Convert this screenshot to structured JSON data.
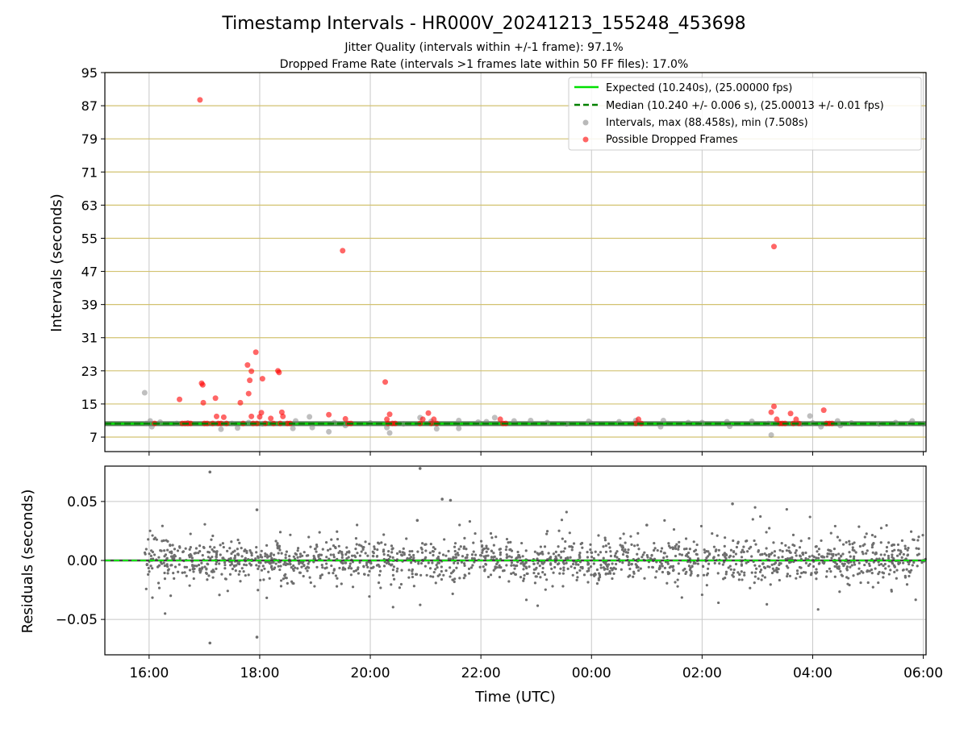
{
  "chart_data": [
    {
      "type": "scatter",
      "title": "Timestamp Intervals - HR000V_20241213_155248_453698",
      "subtitle_lines": [
        "Jitter Quality (intervals within +/-1 frame): 97.1%",
        "Dropped Frame Rate (intervals >1 frames late within 50 FF files): 17.0%"
      ],
      "xlabel": "",
      "ylabel": "Intervals (seconds)",
      "x_units": "hours since 00:00 UTC on first day",
      "xlim": [
        15.2,
        30.05
      ],
      "ylim": [
        3.5,
        95
      ],
      "yticks": [
        7,
        15,
        23,
        31,
        39,
        47,
        55,
        63,
        71,
        79,
        87,
        95
      ],
      "horizontal_gridlines": "yticks",
      "vertical_gridlines": "xticks",
      "legend_position": "top-right",
      "legend": [
        "Expected (10.240s), (25.00000 fps)",
        "Median (10.240 +/- 0.006 s), (25.00013 +/- 0.01 fps)",
        "Intervals, max (88.458s), min (7.508s)",
        "Possible Dropped Frames"
      ],
      "expected_interval": 10.24,
      "median_interval": 10.24,
      "series": [
        {
          "name": "Intervals, max (88.458s), min (7.508s)",
          "color": "#808080",
          "points": [
            [
              15.92,
              17.7
            ],
            [
              15.95,
              10.3
            ],
            [
              16.02,
              10.9
            ],
            [
              16.05,
              9.5
            ],
            [
              16.2,
              10.6
            ],
            [
              16.5,
              10.3
            ],
            [
              16.7,
              10.4
            ],
            [
              17.3,
              8.9
            ],
            [
              17.5,
              10.3
            ],
            [
              17.6,
              9.2
            ],
            [
              17.8,
              10.5
            ],
            [
              18.05,
              10.2
            ],
            [
              18.6,
              9.1
            ],
            [
              18.65,
              10.9
            ],
            [
              18.9,
              11.9
            ],
            [
              18.95,
              9.3
            ],
            [
              19.25,
              8.3
            ],
            [
              19.35,
              10.5
            ],
            [
              19.55,
              9.8
            ],
            [
              20.0,
              10.4
            ],
            [
              20.3,
              9.3
            ],
            [
              20.35,
              8.0
            ],
            [
              20.6,
              10.2
            ],
            [
              20.9,
              11.7
            ],
            [
              21.1,
              10.8
            ],
            [
              21.2,
              9.0
            ],
            [
              21.6,
              9.1
            ],
            [
              21.6,
              11.0
            ],
            [
              21.95,
              10.6
            ],
            [
              22.1,
              10.7
            ],
            [
              22.25,
              11.7
            ],
            [
              22.6,
              10.9
            ],
            [
              22.9,
              11.0
            ],
            [
              23.2,
              10.5
            ],
            [
              23.55,
              10.2
            ],
            [
              23.95,
              10.8
            ],
            [
              24.0,
              10.3
            ],
            [
              24.5,
              10.7
            ],
            [
              24.8,
              11.0
            ],
            [
              25.25,
              9.5
            ],
            [
              25.3,
              11.0
            ],
            [
              25.75,
              10.5
            ],
            [
              26.0,
              10.5
            ],
            [
              26.45,
              10.7
            ],
            [
              26.5,
              9.6
            ],
            [
              26.9,
              10.8
            ],
            [
              27.2,
              10.3
            ],
            [
              27.25,
              7.5
            ],
            [
              27.8,
              10.2
            ],
            [
              27.95,
              12.1
            ],
            [
              28.0,
              10.4
            ],
            [
              28.15,
              9.5
            ],
            [
              28.45,
              10.9
            ],
            [
              28.5,
              9.8
            ],
            [
              28.7,
              10.4
            ],
            [
              29.2,
              10.2
            ],
            [
              29.5,
              10.5
            ],
            [
              29.75,
              10.3
            ],
            [
              29.8,
              10.9
            ],
            [
              30.0,
              10.2
            ]
          ]
        },
        {
          "name": "Possible Dropped Frames",
          "color": "#ff0000",
          "points": [
            [
              16.1,
              10.3
            ],
            [
              16.55,
              16.1
            ],
            [
              16.6,
              10.3
            ],
            [
              16.65,
              10.3
            ],
            [
              16.7,
              10.3
            ],
            [
              16.75,
              10.3
            ],
            [
              16.92,
              88.4
            ],
            [
              16.95,
              20.0
            ],
            [
              16.97,
              19.6
            ],
            [
              16.98,
              15.3
            ],
            [
              17.0,
              10.3
            ],
            [
              17.05,
              10.3
            ],
            [
              17.15,
              10.3
            ],
            [
              17.2,
              16.4
            ],
            [
              17.22,
              12.0
            ],
            [
              17.25,
              10.3
            ],
            [
              17.3,
              10.3
            ],
            [
              17.35,
              11.8
            ],
            [
              17.4,
              10.3
            ],
            [
              17.65,
              15.3
            ],
            [
              17.7,
              10.3
            ],
            [
              17.78,
              24.4
            ],
            [
              17.8,
              17.5
            ],
            [
              17.82,
              20.7
            ],
            [
              17.85,
              22.9
            ],
            [
              17.85,
              12.0
            ],
            [
              17.88,
              10.3
            ],
            [
              17.93,
              27.5
            ],
            [
              17.95,
              10.3
            ],
            [
              18.0,
              11.9
            ],
            [
              18.03,
              12.9
            ],
            [
              18.05,
              21.1
            ],
            [
              18.1,
              10.3
            ],
            [
              18.2,
              11.5
            ],
            [
              18.25,
              10.3
            ],
            [
              18.33,
              23.0
            ],
            [
              18.35,
              22.6
            ],
            [
              18.37,
              10.3
            ],
            [
              18.4,
              13.0
            ],
            [
              18.42,
              12.0
            ],
            [
              18.5,
              10.3
            ],
            [
              18.55,
              10.3
            ],
            [
              19.25,
              12.4
            ],
            [
              19.5,
              52.0
            ],
            [
              19.55,
              11.4
            ],
            [
              19.6,
              10.3
            ],
            [
              19.65,
              10.3
            ],
            [
              20.27,
              20.3
            ],
            [
              20.3,
              11.3
            ],
            [
              20.32,
              10.3
            ],
            [
              20.35,
              12.5
            ],
            [
              20.4,
              10.3
            ],
            [
              20.45,
              10.3
            ],
            [
              20.9,
              10.3
            ],
            [
              20.95,
              11.3
            ],
            [
              21.05,
              12.8
            ],
            [
              21.1,
              10.3
            ],
            [
              21.15,
              11.3
            ],
            [
              21.2,
              10.3
            ],
            [
              22.35,
              11.3
            ],
            [
              22.4,
              10.3
            ],
            [
              22.45,
              10.3
            ],
            [
              24.8,
              10.3
            ],
            [
              24.85,
              11.3
            ],
            [
              24.9,
              10.3
            ],
            [
              27.25,
              13.0
            ],
            [
              27.3,
              53.0
            ],
            [
              27.3,
              14.4
            ],
            [
              27.35,
              11.3
            ],
            [
              27.4,
              10.3
            ],
            [
              27.45,
              10.3
            ],
            [
              27.5,
              10.3
            ],
            [
              27.6,
              12.7
            ],
            [
              27.65,
              10.3
            ],
            [
              27.7,
              11.3
            ],
            [
              27.75,
              10.3
            ],
            [
              28.2,
              13.5
            ],
            [
              28.25,
              10.3
            ],
            [
              28.3,
              10.3
            ],
            [
              28.35,
              10.3
            ]
          ]
        }
      ]
    },
    {
      "type": "scatter",
      "title": "",
      "xlabel": "Time (UTC)",
      "ylabel": "Residuals (seconds)",
      "x_units": "hours since 00:00 UTC on first day",
      "xlim": [
        15.2,
        30.05
      ],
      "ylim": [
        -0.08,
        0.08
      ],
      "yticks": [
        -0.05,
        0.0,
        0.05
      ],
      "ytick_labels": [
        "−0.05",
        "0.00",
        "0.05"
      ],
      "xticks": [
        16,
        18,
        20,
        22,
        24,
        26,
        28,
        30
      ],
      "xtick_labels": [
        "16:00",
        "18:00",
        "20:00",
        "22:00",
        "00:00",
        "02:00",
        "04:00",
        "06:00"
      ],
      "grid": true,
      "reference_lines": [
        0.0
      ],
      "series": [
        {
          "name": "Residuals",
          "color": "#6e6e6e",
          "dense_band": {
            "x_range": [
              15.92,
              30.05
            ],
            "typical_spread": 0.009,
            "count": 1700
          },
          "outliers": [
            [
              17.1,
              0.075
            ],
            [
              17.1,
              -0.07
            ],
            [
              17.95,
              0.043
            ],
            [
              17.95,
              -0.065
            ],
            [
              20.9,
              0.078
            ],
            [
              20.85,
              0.034
            ],
            [
              21.3,
              0.052
            ],
            [
              21.45,
              0.051
            ],
            [
              26.55,
              0.048
            ],
            [
              25.0,
              0.03
            ]
          ]
        }
      ]
    }
  ]
}
